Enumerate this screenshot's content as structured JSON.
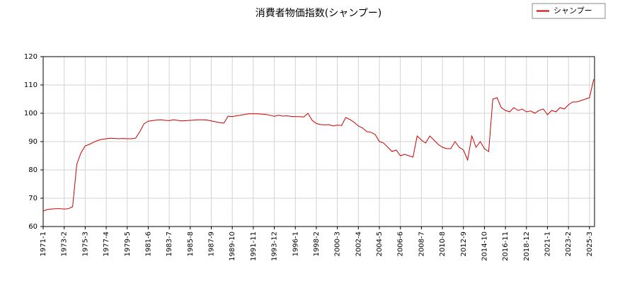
{
  "chart_data": {
    "type": "line",
    "title": "消費者物価指数(シャンプー)",
    "x": [
      "1971-1",
      "1971-6",
      "1971-11",
      "1972-4",
      "1972-9",
      "1973-2",
      "1973-7",
      "1973-12",
      "1974-5",
      "1974-10",
      "1975-3",
      "1975-8",
      "1976-1",
      "1976-6",
      "1976-11",
      "1977-4",
      "1977-9",
      "1978-2",
      "1978-7",
      "1978-12",
      "1979-5",
      "1979-10",
      "1980-3",
      "1980-8",
      "1981-1",
      "1981-6",
      "1981-11",
      "1982-4",
      "1982-9",
      "1983-2",
      "1983-7",
      "1983-12",
      "1984-5",
      "1984-10",
      "1985-3",
      "1985-8",
      "1986-1",
      "1986-6",
      "1986-11",
      "1987-4",
      "1987-9",
      "1988-2",
      "1988-7",
      "1988-12",
      "1989-5",
      "1989-10",
      "1990-3",
      "1990-8",
      "1991-1",
      "1991-6",
      "1991-11",
      "1992-4",
      "1992-9",
      "1993-2",
      "1993-7",
      "1993-12",
      "1994-5",
      "1994-10",
      "1995-3",
      "1995-8",
      "1996-1",
      "1996-6",
      "1996-11",
      "1997-4",
      "1997-9",
      "1998-2",
      "1998-7",
      "1998-12",
      "1999-5",
      "1999-10",
      "2000-3",
      "2000-8",
      "2001-1",
      "2001-6",
      "2001-11",
      "2002-4",
      "2002-9",
      "2003-2",
      "2003-7",
      "2003-12",
      "2004-5",
      "2004-10",
      "2005-3",
      "2005-8",
      "2006-1",
      "2006-6",
      "2006-11",
      "2007-4",
      "2007-9",
      "2008-2",
      "2008-7",
      "2008-12",
      "2009-5",
      "2009-10",
      "2010-3",
      "2010-8",
      "2011-1",
      "2011-6",
      "2011-11",
      "2012-4",
      "2012-9",
      "2013-2",
      "2013-7",
      "2013-12",
      "2014-5",
      "2014-10",
      "2015-3",
      "2015-8",
      "2016-1",
      "2016-6",
      "2016-11",
      "2017-4",
      "2017-9",
      "2018-2",
      "2018-7",
      "2018-12",
      "2019-5",
      "2019-10",
      "2020-3",
      "2020-8",
      "2021-1",
      "2021-6",
      "2021-11",
      "2022-4",
      "2022-9",
      "2023-2",
      "2023-7",
      "2023-12",
      "2024-5",
      "2024-10",
      "2025-3",
      "2025-8"
    ],
    "series": [
      {
        "name": "シャンプー",
        "color": "#cc0000",
        "values": [
          65.5,
          66,
          66.2,
          66.3,
          66.3,
          66.2,
          66.3,
          67,
          82,
          86,
          88.5,
          89,
          89.8,
          90.4,
          90.8,
          91,
          91.2,
          91.1,
          91,
          91.1,
          91,
          91,
          91.2,
          93.5,
          96.3,
          97.2,
          97.4,
          97.6,
          97.7,
          97.5,
          97.4,
          97.7,
          97.5,
          97.3,
          97.4,
          97.5,
          97.6,
          97.7,
          97.7,
          97.6,
          97.3,
          97,
          96.7,
          96.5,
          99,
          98.8,
          99.1,
          99.3,
          99.6,
          99.8,
          99.8,
          99.8,
          99.7,
          99.6,
          99.3,
          98.9,
          99.3,
          99,
          99.1,
          98.9,
          98.8,
          98.8,
          98.7,
          100,
          97.5,
          96.4,
          96,
          95.9,
          96,
          95.5,
          95.8,
          95.7,
          98.5,
          97.8,
          96.8,
          95.5,
          94.8,
          93.5,
          93.3,
          92.5,
          90,
          89.5,
          88,
          86.5,
          87,
          85,
          85.5,
          85,
          84.5,
          92,
          90.5,
          89.5,
          92,
          90.5,
          89,
          88,
          87.5,
          87.5,
          90,
          88,
          87,
          83.5,
          92,
          88,
          90,
          87.5,
          86.5,
          105,
          105.5,
          102,
          101,
          100.5,
          102,
          101,
          101.5,
          100.5,
          100.8,
          100,
          101,
          101.5,
          99.5,
          101,
          100.5,
          102,
          101.5,
          103,
          104,
          104,
          104.5,
          105,
          105.5,
          112
        ]
      }
    ],
    "xticks": [
      "1971-1",
      "1973-2",
      "1975-3",
      "1977-4",
      "1979-5",
      "1981-6",
      "1983-7",
      "1985-8",
      "1987-9",
      "1989-10",
      "1991-11",
      "1993-12",
      "1996-1",
      "1998-2",
      "2000-3",
      "2002-4",
      "2004-5",
      "2006-6",
      "2008-7",
      "2010-8",
      "2012-9",
      "2014-10",
      "2016-11",
      "2018-12",
      "2021-1",
      "2023-2",
      "2025-3"
    ],
    "ylim": [
      60,
      120
    ],
    "yticks": [
      60,
      70,
      80,
      90,
      100,
      110,
      120
    ],
    "grid": true,
    "legend": "top-right"
  }
}
